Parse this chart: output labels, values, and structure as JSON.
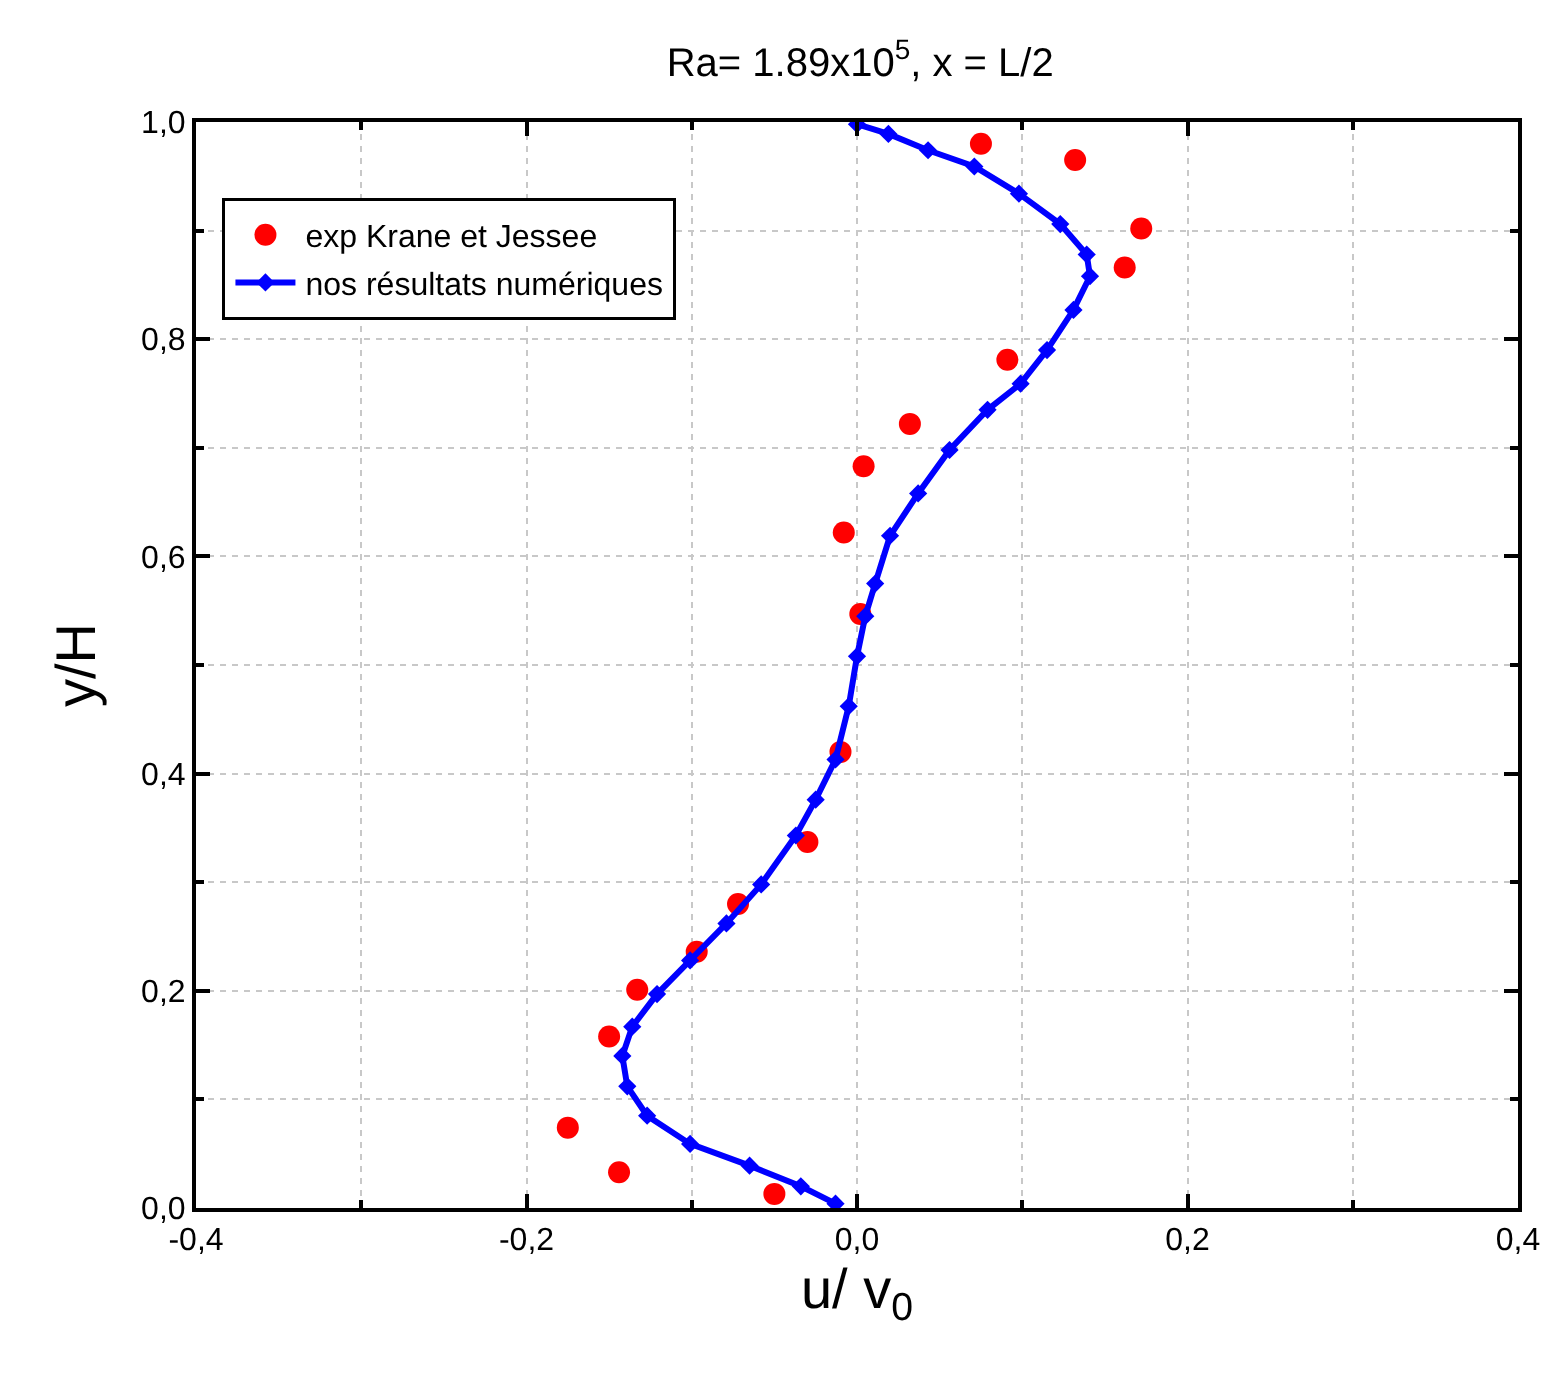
{
  "chart_data": {
    "type": "scatter",
    "title": "Ra= 1.89x10$^{5}$, x = L/2",
    "xlabel": "u/ v$_{0}$",
    "ylabel": "y/H",
    "xlim": [
      -0.4,
      0.4
    ],
    "ylim": [
      0.0,
      1.0
    ],
    "xticks": [
      {
        "value": -0.4,
        "label": "-0,4"
      },
      {
        "value": -0.2,
        "label": "-0,2"
      },
      {
        "value": 0.0,
        "label": "0,0"
      },
      {
        "value": 0.2,
        "label": "0,2"
      },
      {
        "value": 0.4,
        "label": "0,4"
      }
    ],
    "yticks": [
      {
        "value": 0.0,
        "label": "0,0"
      },
      {
        "value": 0.2,
        "label": "0,2"
      },
      {
        "value": 0.4,
        "label": "0,4"
      },
      {
        "value": 0.6,
        "label": "0,6"
      },
      {
        "value": 0.8,
        "label": "0,8"
      },
      {
        "value": 1.0,
        "label": "1,0"
      }
    ],
    "grid": true,
    "legend": "top left",
    "series": [
      {
        "name": "exp Krane et Jessee",
        "marker": "circle",
        "color": "#ff0000",
        "x": [
          0.075,
          0.132,
          0.172,
          0.162,
          0.091,
          0.032,
          0.004,
          -0.008,
          0.002,
          -0.01,
          -0.03,
          -0.072,
          -0.097,
          -0.133,
          -0.15,
          -0.175,
          -0.144,
          -0.05
        ],
        "values": [
          0.98,
          0.965,
          0.902,
          0.866,
          0.781,
          0.722,
          0.683,
          0.622,
          0.547,
          0.42,
          0.337,
          0.28,
          0.236,
          0.201,
          0.158,
          0.074,
          0.033,
          0.013
        ]
      },
      {
        "name": "nos résultats numériques",
        "type": "line",
        "marker": "diamond",
        "line_style": "solid",
        "color": "#0000ff",
        "x": [
          0.0,
          0.019,
          0.043,
          0.071,
          0.098,
          0.123,
          0.139,
          0.141,
          0.131,
          0.115,
          0.099,
          0.079,
          0.056,
          0.037,
          0.02,
          0.011,
          0.005,
          0.0,
          -0.005,
          -0.013,
          -0.025,
          -0.037,
          -0.058,
          -0.079,
          -0.101,
          -0.121,
          -0.136,
          -0.142,
          -0.139,
          -0.127,
          -0.101,
          -0.065,
          -0.034,
          -0.013
        ],
        "values": [
          0.998,
          0.989,
          0.974,
          0.959,
          0.934,
          0.906,
          0.878,
          0.858,
          0.827,
          0.79,
          0.759,
          0.735,
          0.698,
          0.658,
          0.619,
          0.575,
          0.545,
          0.508,
          0.462,
          0.413,
          0.376,
          0.343,
          0.298,
          0.262,
          0.228,
          0.197,
          0.167,
          0.14,
          0.112,
          0.085,
          0.059,
          0.039,
          0.02,
          0.004
        ]
      }
    ]
  }
}
